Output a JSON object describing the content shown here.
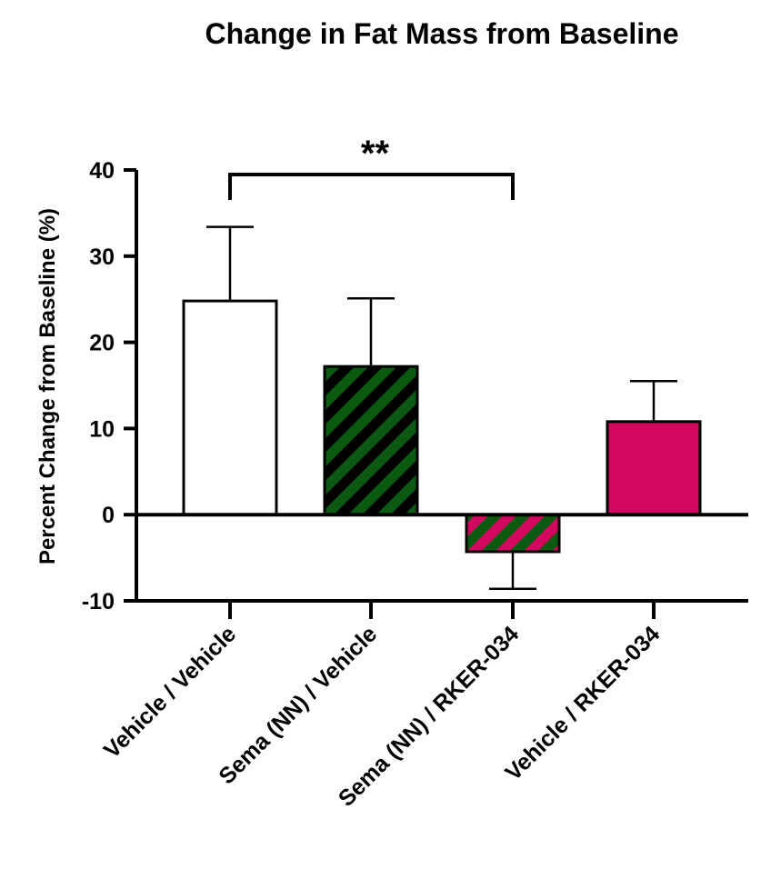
{
  "chart_data": {
    "type": "bar",
    "title": "Change in Fat Mass from Baseline",
    "xlabel": "",
    "ylabel": "Percent Change from Baseline (%)",
    "ylim": [
      -10,
      40
    ],
    "yticks": [
      40,
      30,
      20,
      10,
      0,
      -10
    ],
    "ytick_labels": [
      "40",
      "30",
      "20",
      "10",
      "0",
      "-10"
    ],
    "categories": [
      "Vehicle / Vehicle",
      "Sema (NN) / Vehicle",
      "Sema (NN) / RKER-034",
      "Vehicle / RKER-034"
    ],
    "values": [
      24.8,
      17.2,
      -4.3,
      10.8
    ],
    "error": [
      8.6,
      7.9,
      4.3,
      4.7
    ],
    "bar_styles": [
      {
        "fill": "#ffffff",
        "pattern": "none"
      },
      {
        "fill": "#0c5a12",
        "pattern": "stripes",
        "stripe": "#000000"
      },
      {
        "fill": "#0c5a12",
        "pattern": "stripes",
        "stripe": "#d2085f"
      },
      {
        "fill": "#d2085f",
        "pattern": "none"
      }
    ],
    "annotations": [
      {
        "type": "significance",
        "from": 0,
        "to": 2,
        "label": "**"
      }
    ]
  }
}
